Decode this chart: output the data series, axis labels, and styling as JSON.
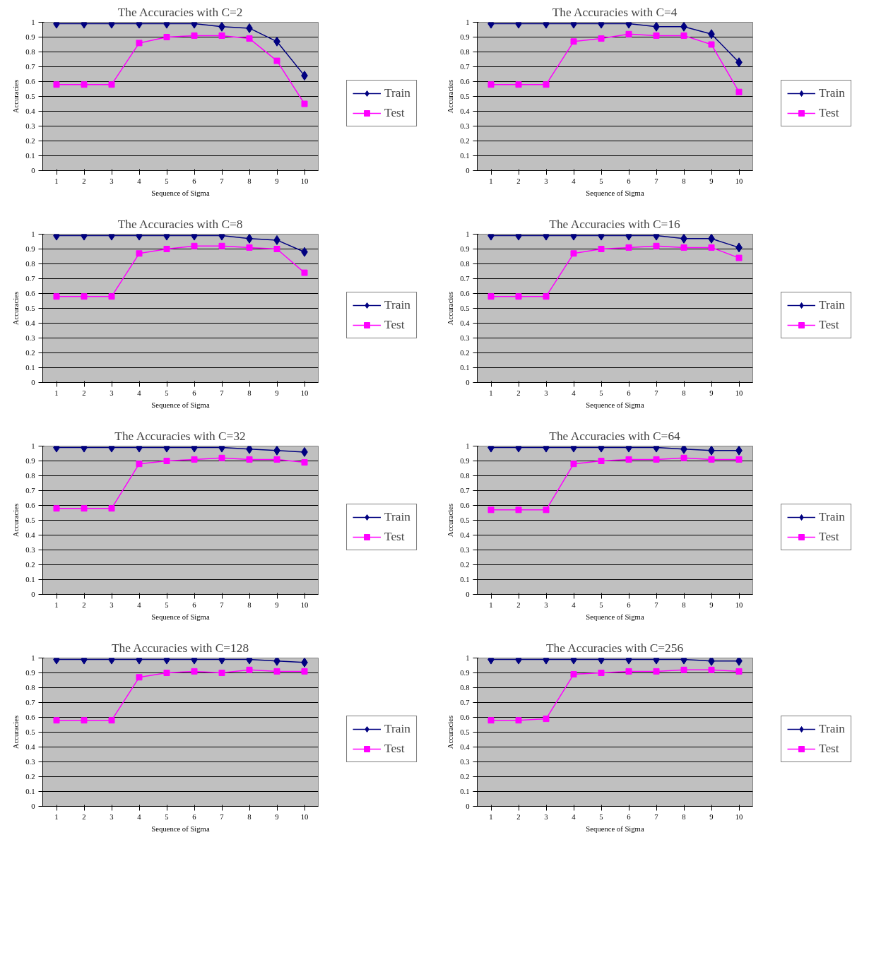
{
  "chart_data": [
    {
      "type": "line",
      "title": "The Accuracies with C=2",
      "xlabel": "Sequence of Sigma",
      "ylabel": "Accuracies",
      "categories": [
        "1",
        "2",
        "3",
        "4",
        "5",
        "6",
        "7",
        "8",
        "9",
        "10"
      ],
      "ylim": [
        0,
        1
      ],
      "yticks": [
        0,
        0.1,
        0.2,
        0.3,
        0.4,
        0.5,
        0.6,
        0.7,
        0.8,
        0.9,
        1
      ],
      "grid": "y",
      "legend": "right",
      "series": [
        {
          "name": "Train",
          "color": "#000080",
          "marker": "diamond",
          "values": [
            0.99,
            0.99,
            0.99,
            0.99,
            0.99,
            0.99,
            0.97,
            0.96,
            0.87,
            0.64
          ]
        },
        {
          "name": "Test",
          "color": "#ff00ff",
          "marker": "square",
          "values": [
            0.58,
            0.58,
            0.58,
            0.86,
            0.9,
            0.91,
            0.91,
            0.89,
            0.74,
            0.45
          ]
        }
      ]
    },
    {
      "type": "line",
      "title": "The Accuracies with C=4",
      "xlabel": "Sequence of Sigma",
      "ylabel": "Accuracies",
      "categories": [
        "1",
        "2",
        "3",
        "4",
        "5",
        "6",
        "7",
        "8",
        "9",
        "10"
      ],
      "ylim": [
        0,
        1
      ],
      "yticks": [
        0,
        0.1,
        0.2,
        0.3,
        0.4,
        0.5,
        0.6,
        0.7,
        0.8,
        0.9,
        1
      ],
      "grid": "y",
      "legend": "right",
      "series": [
        {
          "name": "Train",
          "color": "#000080",
          "marker": "diamond",
          "values": [
            0.99,
            0.99,
            0.99,
            0.99,
            0.99,
            0.99,
            0.97,
            0.97,
            0.92,
            0.73
          ]
        },
        {
          "name": "Test",
          "color": "#ff00ff",
          "marker": "square",
          "values": [
            0.58,
            0.58,
            0.58,
            0.87,
            0.89,
            0.92,
            0.91,
            0.91,
            0.85,
            0.53
          ]
        }
      ]
    },
    {
      "type": "line",
      "title": "The Accuracies with C=8",
      "xlabel": "Sequence of Sigma",
      "ylabel": "Accuracies",
      "categories": [
        "1",
        "2",
        "3",
        "4",
        "5",
        "6",
        "7",
        "8",
        "9",
        "10"
      ],
      "ylim": [
        0,
        1
      ],
      "yticks": [
        0,
        0.1,
        0.2,
        0.3,
        0.4,
        0.5,
        0.6,
        0.7,
        0.8,
        0.9,
        1
      ],
      "grid": "y",
      "legend": "right",
      "series": [
        {
          "name": "Train",
          "color": "#000080",
          "marker": "diamond",
          "values": [
            0.99,
            0.99,
            0.99,
            0.99,
            0.99,
            0.99,
            0.99,
            0.97,
            0.96,
            0.88
          ]
        },
        {
          "name": "Test",
          "color": "#ff00ff",
          "marker": "square",
          "values": [
            0.58,
            0.58,
            0.58,
            0.87,
            0.9,
            0.92,
            0.92,
            0.91,
            0.9,
            0.74
          ]
        }
      ]
    },
    {
      "type": "line",
      "title": "The Accuracies with C=16",
      "xlabel": "Sequence of Sigma",
      "ylabel": "Accuracies",
      "categories": [
        "1",
        "2",
        "3",
        "4",
        "5",
        "6",
        "7",
        "8",
        "9",
        "10"
      ],
      "ylim": [
        0,
        1
      ],
      "yticks": [
        0,
        0.1,
        0.2,
        0.3,
        0.4,
        0.5,
        0.6,
        0.7,
        0.8,
        0.9,
        1
      ],
      "grid": "y",
      "legend": "right",
      "series": [
        {
          "name": "Train",
          "color": "#000080",
          "marker": "diamond",
          "values": [
            0.99,
            0.99,
            0.99,
            0.99,
            0.99,
            0.99,
            0.99,
            0.97,
            0.97,
            0.91
          ]
        },
        {
          "name": "Test",
          "color": "#ff00ff",
          "marker": "square",
          "values": [
            0.58,
            0.58,
            0.58,
            0.87,
            0.9,
            0.91,
            0.92,
            0.91,
            0.91,
            0.84
          ]
        }
      ]
    },
    {
      "type": "line",
      "title": "The Accuracies with C=32",
      "xlabel": "Sequence of Sigma",
      "ylabel": "Accuracies",
      "categories": [
        "1",
        "2",
        "3",
        "4",
        "5",
        "6",
        "7",
        "8",
        "9",
        "10"
      ],
      "ylim": [
        0,
        1
      ],
      "yticks": [
        0,
        0.1,
        0.2,
        0.3,
        0.4,
        0.5,
        0.6,
        0.7,
        0.8,
        0.9,
        1
      ],
      "grid": "y",
      "legend": "right",
      "series": [
        {
          "name": "Train",
          "color": "#000080",
          "marker": "diamond",
          "values": [
            0.99,
            0.99,
            0.99,
            0.99,
            0.99,
            0.99,
            0.99,
            0.98,
            0.97,
            0.96
          ]
        },
        {
          "name": "Test",
          "color": "#ff00ff",
          "marker": "square",
          "values": [
            0.58,
            0.58,
            0.58,
            0.88,
            0.9,
            0.91,
            0.92,
            0.91,
            0.91,
            0.89
          ]
        }
      ]
    },
    {
      "type": "line",
      "title": "The Accuracies with C=64",
      "xlabel": "Sequence of Sigma",
      "ylabel": "Accuracies",
      "categories": [
        "1",
        "2",
        "3",
        "4",
        "5",
        "6",
        "7",
        "8",
        "9",
        "10"
      ],
      "ylim": [
        0,
        1
      ],
      "yticks": [
        0,
        0.1,
        0.2,
        0.3,
        0.4,
        0.5,
        0.6,
        0.7,
        0.8,
        0.9,
        1
      ],
      "grid": "y",
      "legend": "right",
      "series": [
        {
          "name": "Train",
          "color": "#000080",
          "marker": "diamond",
          "values": [
            0.99,
            0.99,
            0.99,
            0.99,
            0.99,
            0.99,
            0.99,
            0.98,
            0.97,
            0.97
          ]
        },
        {
          "name": "Test",
          "color": "#ff00ff",
          "marker": "square",
          "values": [
            0.57,
            0.57,
            0.57,
            0.88,
            0.9,
            0.91,
            0.91,
            0.92,
            0.91,
            0.91
          ]
        }
      ]
    },
    {
      "type": "line",
      "title": "The Accuracies with C=128",
      "xlabel": "Sequence of Sigma",
      "ylabel": "Accuracies",
      "categories": [
        "1",
        "2",
        "3",
        "4",
        "5",
        "6",
        "7",
        "8",
        "9",
        "10"
      ],
      "ylim": [
        0,
        1
      ],
      "yticks": [
        0,
        0.1,
        0.2,
        0.3,
        0.4,
        0.5,
        0.6,
        0.7,
        0.8,
        0.9,
        1
      ],
      "grid": "y",
      "legend": "right",
      "series": [
        {
          "name": "Train",
          "color": "#000080",
          "marker": "diamond",
          "values": [
            0.99,
            0.99,
            0.99,
            0.99,
            0.99,
            0.99,
            0.99,
            0.99,
            0.98,
            0.97
          ]
        },
        {
          "name": "Test",
          "color": "#ff00ff",
          "marker": "square",
          "values": [
            0.58,
            0.58,
            0.58,
            0.87,
            0.9,
            0.91,
            0.9,
            0.92,
            0.91,
            0.91
          ]
        }
      ]
    },
    {
      "type": "line",
      "title": "The Accuracies with C=256",
      "xlabel": "Sequence of Sigma",
      "ylabel": "Accuracies",
      "categories": [
        "1",
        "2",
        "3",
        "4",
        "5",
        "6",
        "7",
        "8",
        "9",
        "10"
      ],
      "ylim": [
        0,
        1
      ],
      "yticks": [
        0,
        0.1,
        0.2,
        0.3,
        0.4,
        0.5,
        0.6,
        0.7,
        0.8,
        0.9,
        1
      ],
      "grid": "y",
      "legend": "right",
      "series": [
        {
          "name": "Train",
          "color": "#000080",
          "marker": "diamond",
          "values": [
            0.99,
            0.99,
            0.99,
            0.99,
            0.99,
            0.99,
            0.99,
            0.99,
            0.98,
            0.98
          ]
        },
        {
          "name": "Test",
          "color": "#ff00ff",
          "marker": "square",
          "values": [
            0.58,
            0.58,
            0.59,
            0.89,
            0.9,
            0.91,
            0.91,
            0.92,
            0.92,
            0.91
          ]
        }
      ]
    }
  ]
}
